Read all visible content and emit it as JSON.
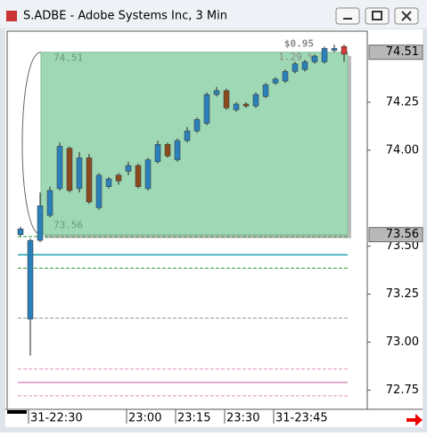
{
  "window": {
    "title": "S.ADBE - Adobe Systems Inc, 3 Min"
  },
  "chart_data": {
    "type": "candlestick",
    "categories": [
      null,
      "31-22:30",
      null,
      null,
      null,
      null,
      null,
      null,
      null,
      null,
      null,
      "23:00",
      null,
      null,
      null,
      null,
      "23:15",
      null,
      null,
      null,
      null,
      "23:30",
      null,
      null,
      null,
      null,
      "31-23:45",
      null,
      null,
      null,
      null,
      null,
      null,
      null
    ],
    "open": [
      73.56,
      73.12,
      73.53,
      73.66,
      73.8,
      74.01,
      73.8,
      73.96,
      73.7,
      73.81,
      73.87,
      73.89,
      73.92,
      73.8,
      73.94,
      74.03,
      73.95,
      74.05,
      74.1,
      74.14,
      74.29,
      74.31,
      74.21,
      74.24,
      74.23,
      74.28,
      74.35,
      74.36,
      74.41,
      74.42,
      74.46,
      74.46,
      74.52,
      74.54
    ],
    "high": [
      73.6,
      73.54,
      73.78,
      73.81,
      74.04,
      74.02,
      73.99,
      73.98,
      73.88,
      73.86,
      73.88,
      73.94,
      73.93,
      73.96,
      74.05,
      74.04,
      74.06,
      74.12,
      74.17,
      74.3,
      74.33,
      74.32,
      74.25,
      74.25,
      74.3,
      74.35,
      74.38,
      74.42,
      74.46,
      74.47,
      74.5,
      74.54,
      74.55,
      74.55
    ],
    "low": [
      73.55,
      72.93,
      73.52,
      73.65,
      73.79,
      73.78,
      73.78,
      73.72,
      73.69,
      73.8,
      73.82,
      73.87,
      73.8,
      73.79,
      73.93,
      73.96,
      73.94,
      74.04,
      74.09,
      74.13,
      74.28,
      74.21,
      74.2,
      74.22,
      74.22,
      74.27,
      74.34,
      74.35,
      74.4,
      74.41,
      74.45,
      74.45,
      74.51,
      74.46
    ],
    "close": [
      73.59,
      73.53,
      73.71,
      73.79,
      74.02,
      73.79,
      73.96,
      73.73,
      73.87,
      73.85,
      73.84,
      73.92,
      73.81,
      73.95,
      74.03,
      73.97,
      74.05,
      74.1,
      74.16,
      74.29,
      74.31,
      74.22,
      74.24,
      74.23,
      74.29,
      74.34,
      74.37,
      74.41,
      74.45,
      74.46,
      74.49,
      74.53,
      74.53,
      74.5
    ],
    "colors": {
      "up": "#2b80b9",
      "down": "#8a4a1e",
      "current": "#d23a3a"
    },
    "ylim": [
      72.65,
      74.62
    ],
    "yticks": [
      {
        "value": 72.75,
        "label": "72.75"
      },
      {
        "value": 73.0,
        "label": "73.00"
      },
      {
        "value": 73.25,
        "label": "73.25"
      },
      {
        "value": 73.5,
        "label": "73.50"
      },
      {
        "value": 74.0,
        "label": "74.00"
      },
      {
        "value": 74.25,
        "label": "74.25"
      }
    ],
    "range_box": {
      "high": 74.51,
      "low": 73.56,
      "high_label": "74.51",
      "low_label": "73.56",
      "change": "$0.95",
      "change_pct": "1.29 %",
      "color": "#9fd8b4"
    },
    "levels": [
      {
        "value": 73.55,
        "color": "#2a9a3a",
        "dashed": true
      },
      {
        "value": 73.455,
        "color": "#1aa0b0",
        "dashed": false
      },
      {
        "value": 73.385,
        "color": "#2a9a3a",
        "dashed": true
      },
      {
        "value": 73.125,
        "color": "#999999",
        "dashed": true
      },
      {
        "value": 72.86,
        "color": "#e090c0",
        "dashed": true
      },
      {
        "value": 72.79,
        "color": "#e090c0",
        "dashed": false
      },
      {
        "value": 72.72,
        "color": "#e090c0",
        "dashed": true
      }
    ]
  }
}
